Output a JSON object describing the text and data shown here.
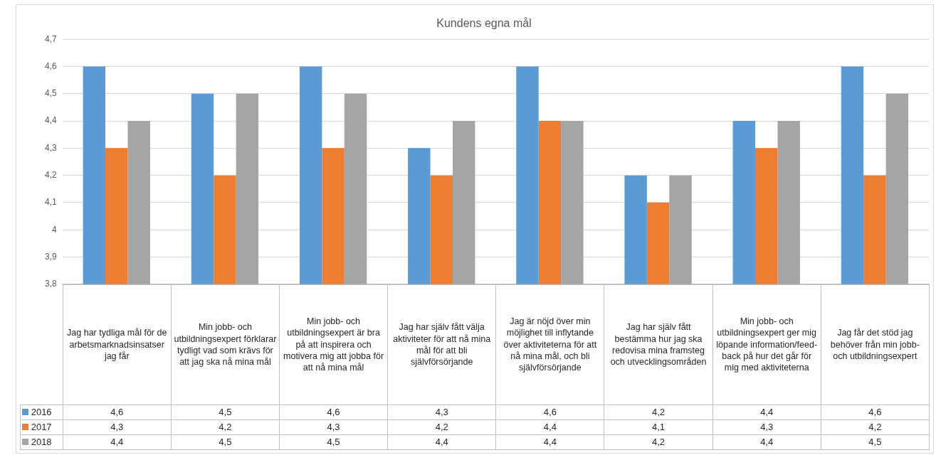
{
  "chart_data": {
    "type": "bar",
    "title": "Kundens egna mål",
    "categories": [
      "Jag har tydliga mål för de arbetsmarknadsinsatser jag får",
      "Min jobb- och utbildningsexpert förklarar tydligt vad som krävs för att jag ska nå mina mål",
      "Min jobb- och utbildningsexpert är bra på att inspirera och motivera mig att jobba för att nå mina mål",
      "Jag har själv fått välja aktiviteter för att nå mina mål för att bli självförsörjande",
      "Jag är nöjd över min möjlighet till inflytande över aktiviteterna för att nå mina mål, och bli självförsörjande",
      "Jag har själv fått bestämma hur jag ska redovisa mina framsteg och utvecklingsområden",
      "Min jobb- och utbildningsexpert ger mig löpande information/feed-back på hur det går för mig med aktiviteterna",
      "Jag får det stöd jag behöver från min jobb- och utbildningsexpert"
    ],
    "series": [
      {
        "name": "2016",
        "color": "#5b9bd5",
        "values": [
          4.6,
          4.5,
          4.6,
          4.3,
          4.6,
          4.2,
          4.4,
          4.6
        ],
        "value_labels": [
          "4,6",
          "4,5",
          "4,6",
          "4,3",
          "4,6",
          "4,2",
          "4,4",
          "4,6"
        ]
      },
      {
        "name": "2017",
        "color": "#ed7d31",
        "values": [
          4.3,
          4.2,
          4.3,
          4.2,
          4.4,
          4.1,
          4.3,
          4.2
        ],
        "value_labels": [
          "4,3",
          "4,2",
          "4,3",
          "4,2",
          "4,4",
          "4,1",
          "4,3",
          "4,2"
        ]
      },
      {
        "name": "2018",
        "color": "#a5a5a5",
        "values": [
          4.4,
          4.5,
          4.5,
          4.4,
          4.4,
          4.2,
          4.4,
          4.5
        ],
        "value_labels": [
          "4,4",
          "4,5",
          "4,5",
          "4,4",
          "4,4",
          "4,2",
          "4,4",
          "4,5"
        ]
      }
    ],
    "ylim": [
      3.8,
      4.7
    ],
    "yticks": [
      {
        "value": 3.8,
        "label": "3,8"
      },
      {
        "value": 3.9,
        "label": "3,9"
      },
      {
        "value": 4,
        "label": "4"
      },
      {
        "value": 4.1,
        "label": "4,1"
      },
      {
        "value": 4.2,
        "label": "4,2"
      },
      {
        "value": 4.3,
        "label": "4,3"
      },
      {
        "value": 4.4,
        "label": "4,4"
      },
      {
        "value": 4.5,
        "label": "4,5"
      },
      {
        "value": 4.6,
        "label": "4,6"
      },
      {
        "value": 4.7,
        "label": "4,7"
      }
    ],
    "grid": "y",
    "legend": "bottom left"
  }
}
